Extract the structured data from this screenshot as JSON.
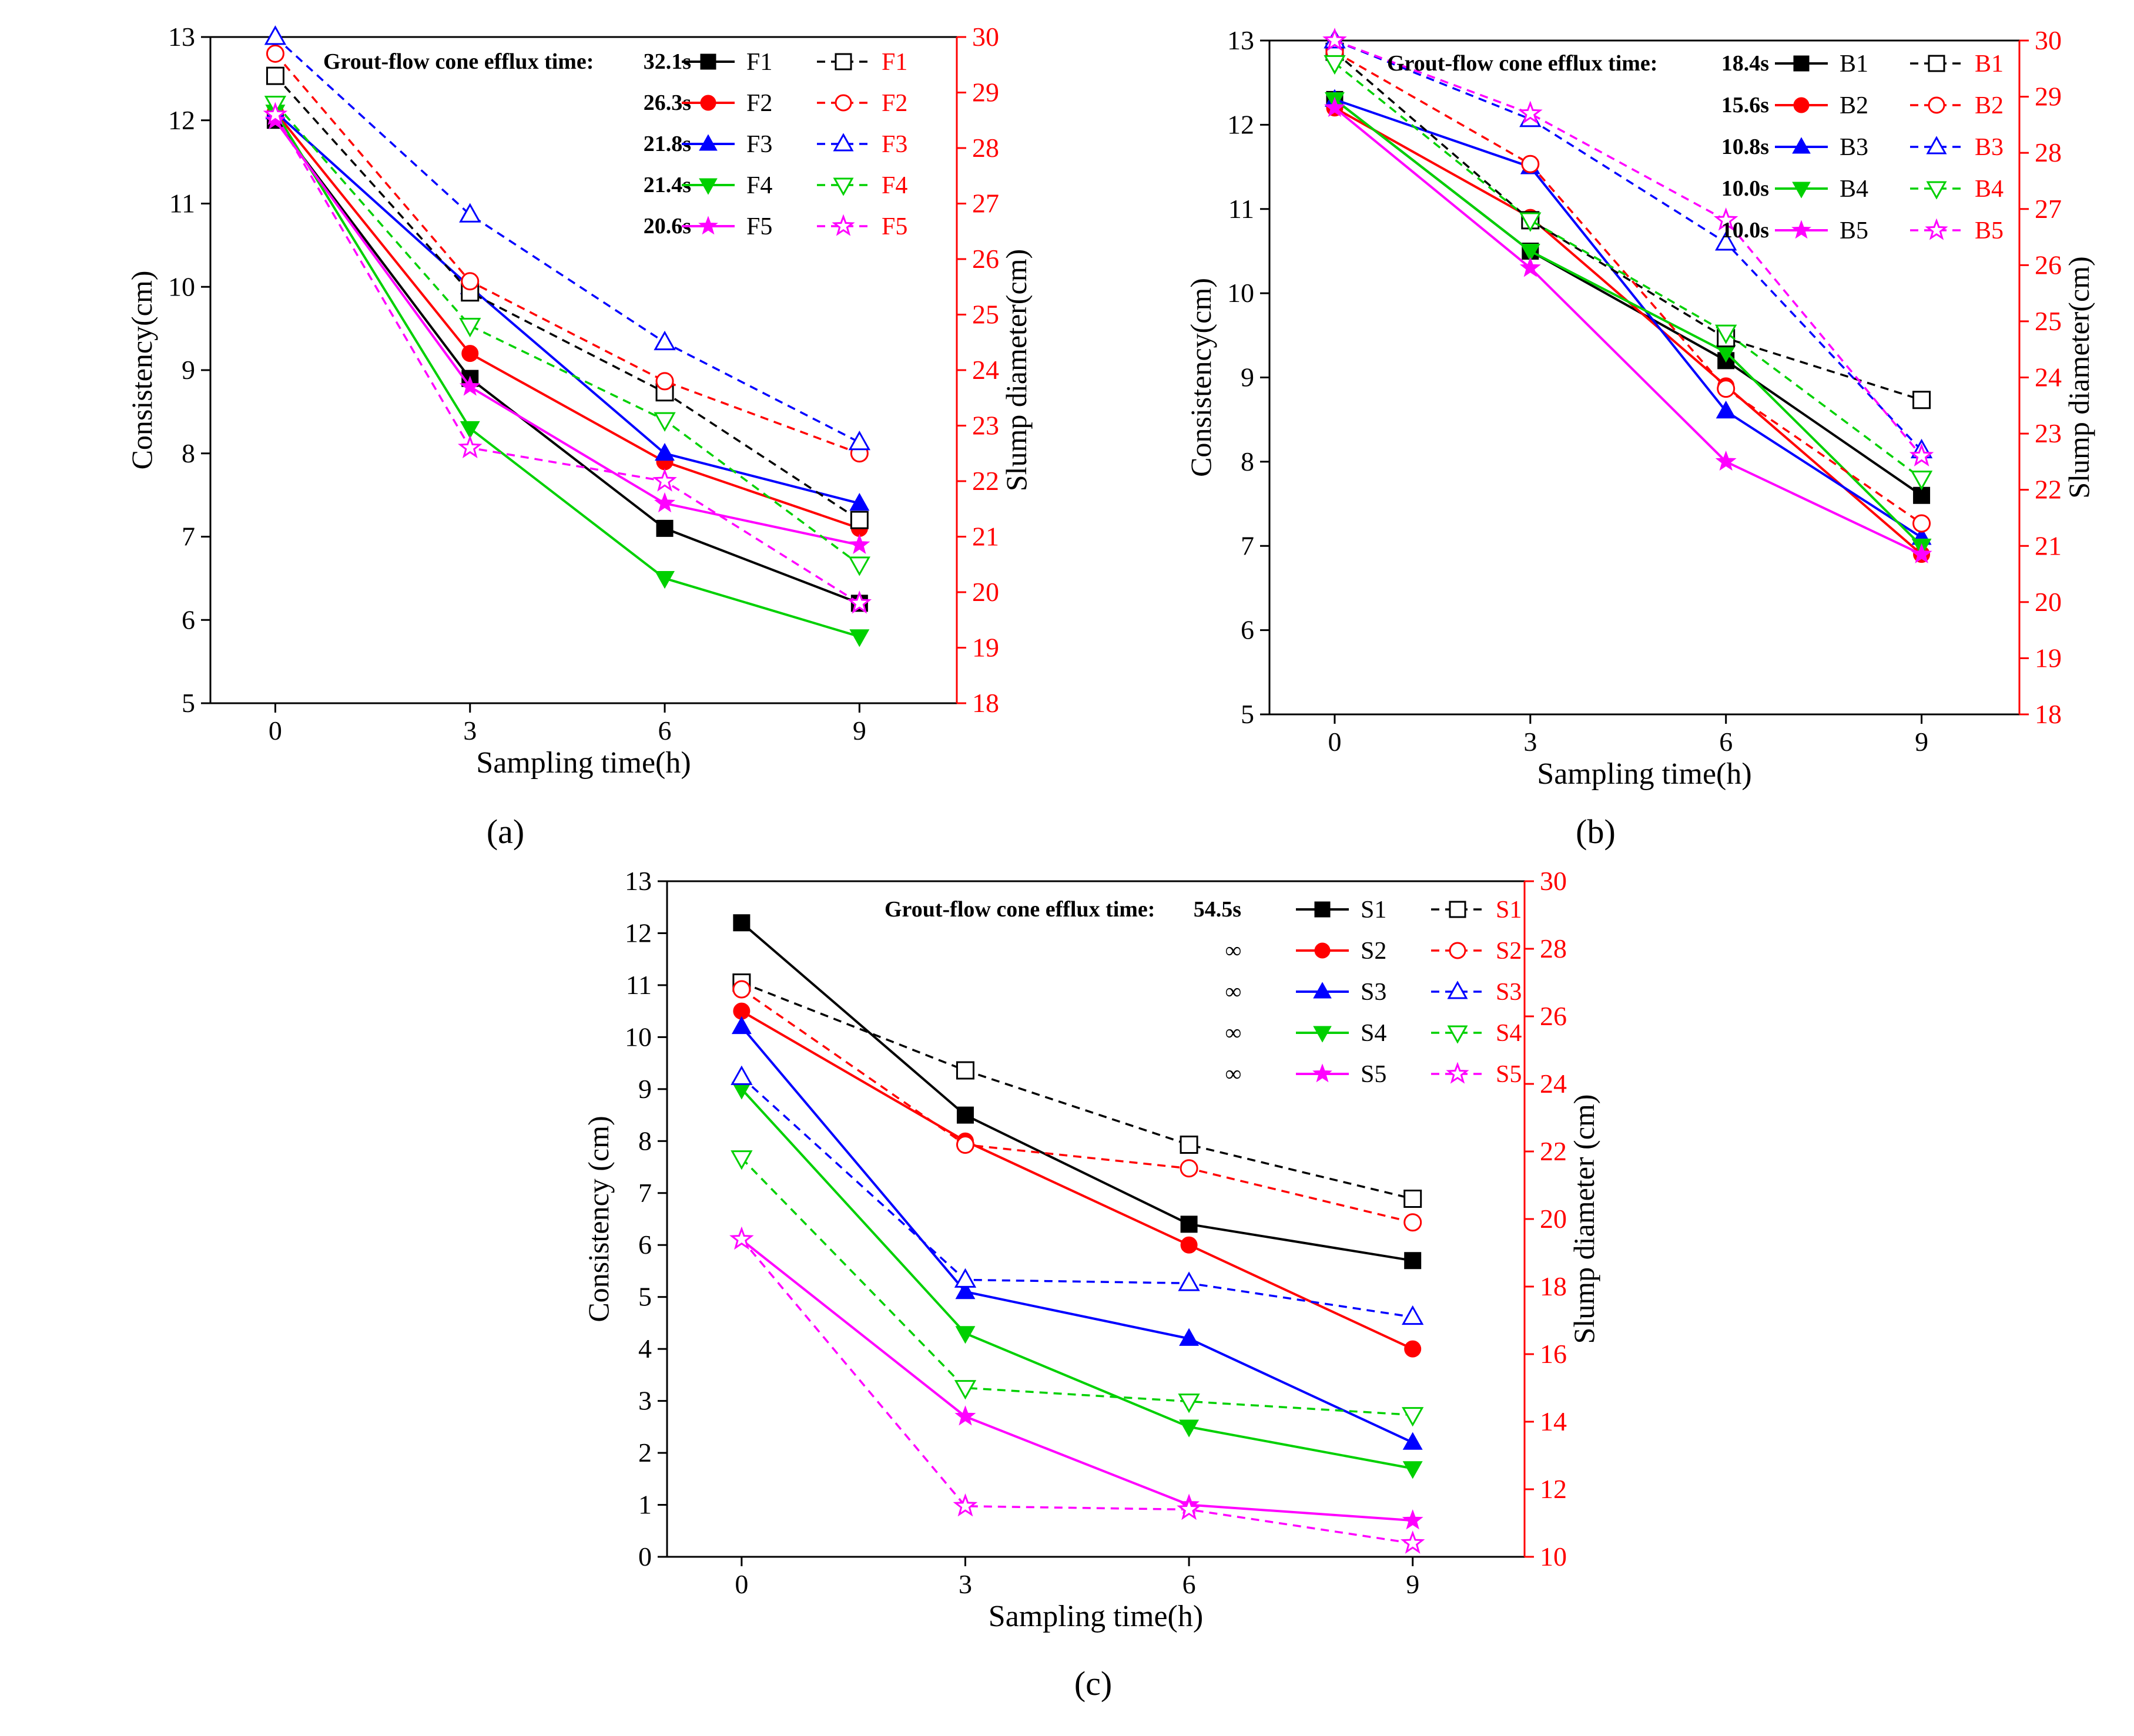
{
  "chart_data": [
    {
      "panel_label": "(a)",
      "type": "line",
      "xlabel": "Sampling time(h)",
      "ylabel_left": "Consistency(cm)",
      "ylabel_right": "Slump diameter(cm)",
      "x": [
        0,
        3,
        6,
        9
      ],
      "xticks": [
        0,
        3,
        6,
        9
      ],
      "xlim": [
        -1,
        10.5
      ],
      "ylim_left": [
        5,
        13
      ],
      "yticks_left": [
        5,
        6,
        7,
        8,
        9,
        10,
        11,
        12,
        13
      ],
      "ylim_right": [
        18,
        30
      ],
      "yticks_right": [
        18,
        19,
        20,
        21,
        22,
        23,
        24,
        25,
        26,
        27,
        28,
        29,
        30
      ],
      "efflux_label": "Grout-flow cone efflux time:",
      "efflux_times": [
        "32.1s",
        "26.3s",
        "21.8s",
        "21.4s",
        "20.6s"
      ],
      "legend_position": "top-right",
      "series": [
        {
          "name": "F1",
          "axis": "left",
          "color": "#000000",
          "marker": "square",
          "values": [
            12.0,
            8.9,
            7.1,
            6.2
          ]
        },
        {
          "name": "F2",
          "axis": "left",
          "color": "#ff0000",
          "marker": "circle",
          "values": [
            12.1,
            9.2,
            7.9,
            7.1
          ]
        },
        {
          "name": "F3",
          "axis": "left",
          "color": "#0000ff",
          "marker": "triangle-up",
          "values": [
            12.1,
            10.0,
            8.0,
            7.4
          ]
        },
        {
          "name": "F4",
          "axis": "left",
          "color": "#00d000",
          "marker": "triangle-down",
          "values": [
            12.1,
            8.3,
            6.5,
            5.8
          ]
        },
        {
          "name": "F5",
          "axis": "left",
          "color": "#ff00ff",
          "marker": "star",
          "values": [
            12.0,
            8.8,
            7.4,
            6.9
          ]
        },
        {
          "name": "F1",
          "axis": "right",
          "color": "#000000",
          "marker": "square",
          "values": [
            29.3,
            25.4,
            23.6,
            21.3
          ]
        },
        {
          "name": "F2",
          "axis": "right",
          "color": "#ff0000",
          "marker": "circle",
          "values": [
            29.7,
            25.6,
            23.8,
            22.5
          ]
        },
        {
          "name": "F3",
          "axis": "right",
          "color": "#0000ff",
          "marker": "triangle-up",
          "values": [
            30.0,
            26.8,
            24.5,
            22.7
          ]
        },
        {
          "name": "F4",
          "axis": "right",
          "color": "#00d000",
          "marker": "triangle-down",
          "values": [
            28.8,
            24.8,
            23.1,
            20.5
          ]
        },
        {
          "name": "F5",
          "axis": "right",
          "color": "#ff00ff",
          "marker": "star",
          "values": [
            28.6,
            22.6,
            22.0,
            19.8
          ]
        }
      ]
    },
    {
      "panel_label": "(b)",
      "type": "line",
      "xlabel": "Sampling time(h)",
      "ylabel_left": "Consistency(cm)",
      "ylabel_right": "Slump diameter(cm)",
      "x": [
        0,
        3,
        6,
        9
      ],
      "xticks": [
        0,
        3,
        6,
        9
      ],
      "xlim": [
        -1,
        10.5
      ],
      "ylim_left": [
        5,
        13
      ],
      "yticks_left": [
        5,
        6,
        7,
        8,
        9,
        10,
        11,
        12,
        13
      ],
      "ylim_right": [
        18,
        30
      ],
      "yticks_right": [
        18,
        19,
        20,
        21,
        22,
        23,
        24,
        25,
        26,
        27,
        28,
        29,
        30
      ],
      "efflux_label": "Grout-flow cone efflux time:",
      "efflux_times": [
        "18.4s",
        "15.6s",
        "10.8s",
        "10.0s",
        "10.0s"
      ],
      "legend_position": "top-right",
      "series": [
        {
          "name": "B1",
          "axis": "left",
          "color": "#000000",
          "marker": "square",
          "values": [
            12.3,
            10.5,
            9.2,
            7.6
          ]
        },
        {
          "name": "B2",
          "axis": "left",
          "color": "#ff0000",
          "marker": "circle",
          "values": [
            12.2,
            10.9,
            8.9,
            6.9
          ]
        },
        {
          "name": "B3",
          "axis": "left",
          "color": "#0000ff",
          "marker": "triangle-up",
          "values": [
            12.3,
            11.5,
            8.6,
            7.1
          ]
        },
        {
          "name": "B4",
          "axis": "left",
          "color": "#00d000",
          "marker": "triangle-down",
          "values": [
            12.3,
            10.5,
            9.3,
            7.0
          ]
        },
        {
          "name": "B5",
          "axis": "left",
          "color": "#ff00ff",
          "marker": "star",
          "values": [
            12.2,
            10.3,
            8.0,
            6.9
          ]
        },
        {
          "name": "B1",
          "axis": "right",
          "color": "#000000",
          "marker": "square",
          "values": [
            29.8,
            26.8,
            24.7,
            23.6
          ]
        },
        {
          "name": "B2",
          "axis": "right",
          "color": "#ff0000",
          "marker": "circle",
          "values": [
            29.8,
            27.8,
            23.8,
            21.4
          ]
        },
        {
          "name": "B3",
          "axis": "right",
          "color": "#0000ff",
          "marker": "triangle-up",
          "values": [
            30.0,
            28.6,
            26.4,
            22.7
          ]
        },
        {
          "name": "B4",
          "axis": "right",
          "color": "#00d000",
          "marker": "triangle-down",
          "values": [
            29.6,
            26.8,
            24.8,
            22.2
          ]
        },
        {
          "name": "B5",
          "axis": "right",
          "color": "#ff00ff",
          "marker": "star",
          "values": [
            30.0,
            28.7,
            26.8,
            22.6
          ]
        }
      ]
    },
    {
      "panel_label": "(c)",
      "type": "line",
      "xlabel": "Sampling time(h)",
      "ylabel_left": "Consistency (cm)",
      "ylabel_right": "Slump diameter (cm)",
      "x": [
        0,
        3,
        6,
        9
      ],
      "xticks": [
        0,
        3,
        6,
        9
      ],
      "xlim": [
        -1,
        10.5
      ],
      "ylim_left": [
        0,
        13
      ],
      "yticks_left": [
        0,
        1,
        2,
        3,
        4,
        5,
        6,
        7,
        8,
        9,
        10,
        11,
        12,
        13
      ],
      "ylim_right": [
        10,
        30
      ],
      "yticks_right": [
        10,
        12,
        14,
        16,
        18,
        20,
        22,
        24,
        26,
        28,
        30
      ],
      "efflux_label": "Grout-flow cone efflux time:",
      "efflux_times": [
        "54.5s",
        "∞",
        "∞",
        "∞",
        "∞"
      ],
      "legend_position": "top-right",
      "series": [
        {
          "name": "S1",
          "axis": "left",
          "color": "#000000",
          "marker": "square",
          "values": [
            12.2,
            8.5,
            6.4,
            5.7
          ]
        },
        {
          "name": "S2",
          "axis": "left",
          "color": "#ff0000",
          "marker": "circle",
          "values": [
            10.5,
            8.0,
            6.0,
            4.0
          ]
        },
        {
          "name": "S3",
          "axis": "left",
          "color": "#0000ff",
          "marker": "triangle-up",
          "values": [
            10.2,
            5.1,
            4.2,
            2.2
          ]
        },
        {
          "name": "S4",
          "axis": "left",
          "color": "#00d000",
          "marker": "triangle-down",
          "values": [
            9.0,
            4.3,
            2.5,
            1.7
          ]
        },
        {
          "name": "S5",
          "axis": "left",
          "color": "#ff00ff",
          "marker": "star",
          "values": [
            6.1,
            2.7,
            1.0,
            0.7
          ]
        },
        {
          "name": "S1",
          "axis": "right",
          "color": "#000000",
          "marker": "square",
          "values": [
            27.0,
            24.4,
            22.2,
            20.6
          ]
        },
        {
          "name": "S2",
          "axis": "right",
          "color": "#ff0000",
          "marker": "circle",
          "values": [
            26.8,
            22.2,
            21.5,
            19.9
          ]
        },
        {
          "name": "S3",
          "axis": "right",
          "color": "#0000ff",
          "marker": "triangle-up",
          "values": [
            24.2,
            18.2,
            18.1,
            17.1
          ]
        },
        {
          "name": "S4",
          "axis": "right",
          "color": "#00d000",
          "marker": "triangle-down",
          "values": [
            21.8,
            15.0,
            14.6,
            14.2
          ]
        },
        {
          "name": "S5",
          "axis": "right",
          "color": "#ff00ff",
          "marker": "star",
          "values": [
            19.4,
            11.5,
            11.4,
            10.4
          ]
        }
      ]
    }
  ]
}
